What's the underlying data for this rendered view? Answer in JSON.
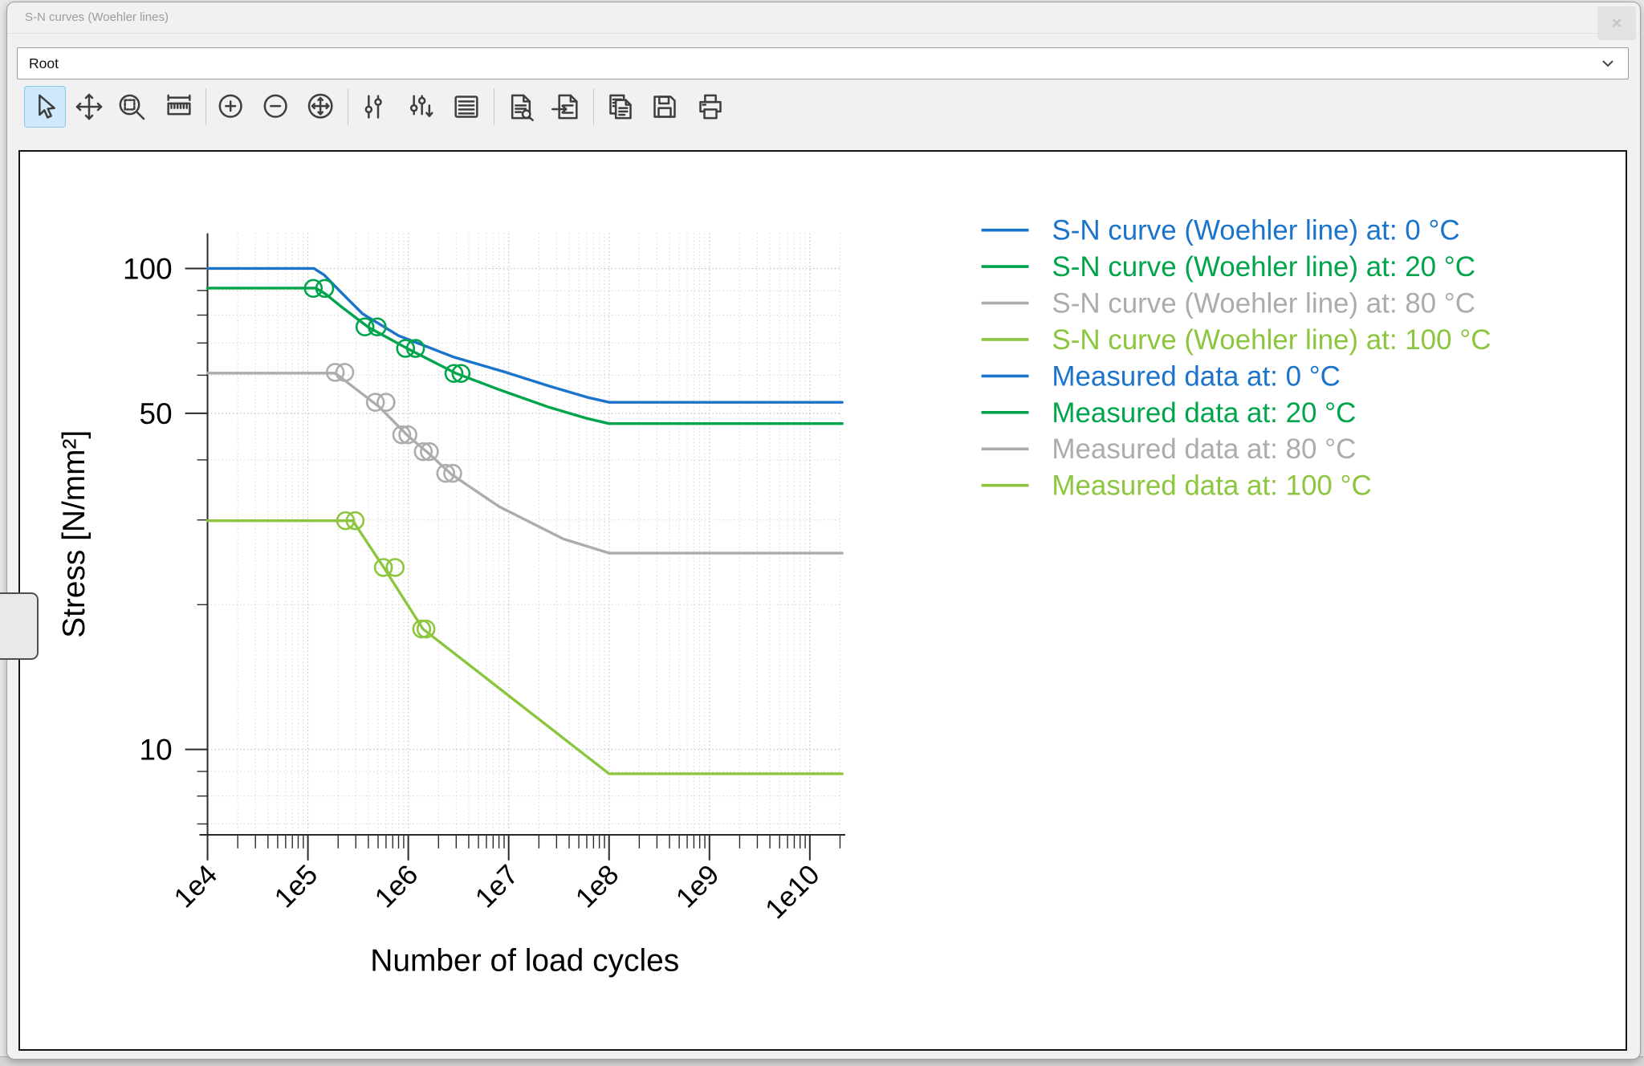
{
  "window": {
    "title": "S-N curves (Woehler lines)",
    "close_label": "×"
  },
  "path_selector": {
    "value": "Root"
  },
  "toolbar": {
    "icons": [
      "select-cursor",
      "pan",
      "zoom-region",
      "measure-ruler",
      "zoom-in",
      "zoom-out",
      "zoom-reset",
      "curve-settings",
      "curve-settings-reset",
      "legend-list",
      "document-preview",
      "document-import",
      "copy",
      "save",
      "print"
    ],
    "selected": "select-cursor"
  },
  "colors": {
    "c0": "#1B74CB",
    "c20": "#00A44A",
    "c80": "#ACACAC",
    "c100": "#8CC63E"
  },
  "chart_data": {
    "type": "line",
    "title": "",
    "xlabel": "Number of load cycles",
    "ylabel": "Stress [N/mm²]",
    "x_scale": "log",
    "y_scale": "log",
    "xlim": [
      10000,
      21000000000
    ],
    "ylim": [
      6.6,
      118
    ],
    "grid": true,
    "legend_position": "right",
    "x_ticks": [
      {
        "value": 10000,
        "label": "1e4"
      },
      {
        "value": 100000,
        "label": "1e5"
      },
      {
        "value": 1000000,
        "label": "1e6"
      },
      {
        "value": 10000000,
        "label": "1e7"
      },
      {
        "value": 100000000,
        "label": "1e8"
      },
      {
        "value": 1000000000,
        "label": "1e9"
      },
      {
        "value": 10000000000,
        "label": "1e10"
      }
    ],
    "y_ticks": [
      {
        "value": 100,
        "label": "100"
      },
      {
        "value": 50,
        "label": "50"
      },
      {
        "value": 10,
        "label": "10"
      }
    ],
    "y_minor_ticks": [
      90,
      80,
      70,
      60,
      40,
      30,
      20,
      9,
      8,
      7
    ],
    "legend": [
      {
        "label": "S-N curve (Woehler line) at: 0 °C",
        "color": "#1B74CB"
      },
      {
        "label": "S-N curve (Woehler line) at: 20 °C",
        "color": "#00A44A"
      },
      {
        "label": "S-N curve (Woehler line) at: 80 °C",
        "color": "#ACACAC"
      },
      {
        "label": "S-N curve (Woehler line) at: 100 °C",
        "color": "#8CC63E"
      },
      {
        "label": "Measured data at: 0 °C",
        "color": "#1B74CB"
      },
      {
        "label": "Measured data at: 20 °C",
        "color": "#00A44A"
      },
      {
        "label": "Measured data at: 80 °C",
        "color": "#ACACAC"
      },
      {
        "label": "Measured data at: 100 °C",
        "color": "#8CC63E"
      }
    ],
    "series": [
      {
        "name": "sn-curve-0C",
        "style": "line",
        "color": "#1B74CB",
        "points": [
          [
            10000.0,
            100
          ],
          [
            115000.0,
            100
          ],
          [
            145000.0,
            97
          ],
          [
            200000.0,
            90.5
          ],
          [
            350000.0,
            80.5
          ],
          [
            800000.0,
            72.5
          ],
          [
            2800000.0,
            65.5
          ],
          [
            9000000.0,
            61
          ],
          [
            25000000.0,
            57
          ],
          [
            60000000.0,
            54
          ],
          [
            100000000.0,
            52.7
          ],
          [
            21000000000.0,
            52.7
          ]
        ]
      },
      {
        "name": "sn-curve-20C",
        "style": "line",
        "color": "#00A44A",
        "points": [
          [
            10000.0,
            91
          ],
          [
            120000.0,
            91
          ],
          [
            150000.0,
            88.5
          ],
          [
            220000.0,
            83
          ],
          [
            400000.0,
            75.5
          ],
          [
            1000000.0,
            68
          ],
          [
            3000000.0,
            60.5
          ],
          [
            8000000.0,
            56
          ],
          [
            25000000.0,
            51.5
          ],
          [
            60000000.0,
            48.8
          ],
          [
            100000000.0,
            47.6
          ],
          [
            21000000000.0,
            47.6
          ]
        ]
      },
      {
        "name": "sn-curve-80C",
        "style": "line",
        "color": "#ACACAC",
        "points": [
          [
            10000.0,
            60.6
          ],
          [
            187000.0,
            60.6
          ],
          [
            510000.0,
            51.6
          ],
          [
            1000000.0,
            44.8
          ],
          [
            1550000.0,
            41.5
          ],
          [
            2700000.0,
            37.3
          ],
          [
            8000000.0,
            32
          ],
          [
            35000000.0,
            27.4
          ],
          [
            100000000.0,
            25.6
          ],
          [
            21000000000.0,
            25.6
          ]
        ]
      },
      {
        "name": "sn-curve-100C",
        "style": "line",
        "color": "#8CC63E",
        "points": [
          [
            10000.0,
            29.9
          ],
          [
            280000.0,
            29.9
          ],
          [
            570000.0,
            23.9
          ],
          [
            1400000.0,
            17.8
          ],
          [
            100000000.0,
            8.9
          ],
          [
            21000000000.0,
            8.9
          ]
        ]
      },
      {
        "name": "measured-0C",
        "style": "markers",
        "color": "#1B74CB",
        "points": []
      },
      {
        "name": "measured-20C",
        "style": "markers",
        "color": "#00A44A",
        "points": [
          [
            113000.0,
            90.9
          ],
          [
            147000.0,
            90.9
          ],
          [
            370000.0,
            75.6
          ],
          [
            490000.0,
            75.6
          ],
          [
            940000.0,
            68.2
          ],
          [
            1180000.0,
            68.2
          ],
          [
            2850000.0,
            60.5
          ],
          [
            3350000.0,
            60.5
          ]
        ]
      },
      {
        "name": "measured-80C",
        "style": "markers",
        "color": "#ACACAC",
        "points": [
          [
            187000.0,
            60.8
          ],
          [
            233000.0,
            60.8
          ],
          [
            470000.0,
            52.7
          ],
          [
            600000.0,
            52.7
          ],
          [
            860000.0,
            45.1
          ],
          [
            990000.0,
            45.1
          ],
          [
            1410000.0,
            41.6
          ],
          [
            1620000.0,
            41.6
          ],
          [
            2360000.0,
            37.5
          ],
          [
            2770000.0,
            37.5
          ]
        ]
      },
      {
        "name": "measured-100C",
        "style": "markers",
        "color": "#8CC63E",
        "points": [
          [
            237000.0,
            29.9
          ],
          [
            295000.0,
            29.9
          ],
          [
            565000.0,
            23.9
          ],
          [
            740000.0,
            23.9
          ],
          [
            1360000.0,
            17.8
          ],
          [
            1500000.0,
            17.8
          ]
        ]
      }
    ]
  }
}
